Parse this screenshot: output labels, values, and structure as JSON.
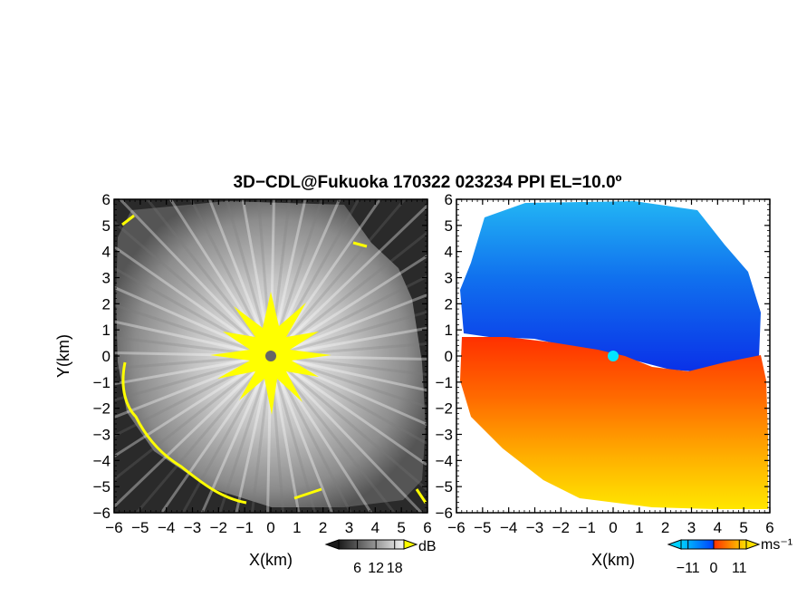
{
  "chart_data": [
    {
      "type": "heatmap",
      "title": "3D−CDL@Fukuoka 170322 023234 PPI EL=10.0º",
      "xlabel": "X(km)",
      "ylabel": "Y(km)",
      "xlim": [
        -6,
        6
      ],
      "ylim": [
        -6,
        6
      ],
      "x_ticks": [
        -6,
        -5,
        -4,
        -3,
        -2,
        -1,
        0,
        1,
        2,
        3,
        4,
        5,
        6
      ],
      "y_ticks": [
        -6,
        -5,
        -4,
        -3,
        -2,
        -1,
        0,
        1,
        2,
        3,
        4,
        5,
        6
      ],
      "x_tick_labels": [
        "−6",
        "−5",
        "−4",
        "−3",
        "−2",
        "−1",
        "0",
        "1",
        "2",
        "3",
        "4",
        "5",
        "6"
      ],
      "y_tick_labels": [
        "−6",
        "−5",
        "−4",
        "−3",
        "−2",
        "−1",
        "0",
        "1",
        "2",
        "3",
        "4",
        "5",
        "6"
      ],
      "quantity": "SNR",
      "colorbar": {
        "unit": "dB",
        "colormap": "grayscale",
        "colors": [
          "#1a1a1a",
          "#f5f5f5"
        ],
        "overflow_color": "#ffff00",
        "ticks": [
          6,
          12,
          18
        ],
        "tick_labels": [
          "6",
          "12",
          "18"
        ],
        "range": [
          0,
          21
        ]
      }
    },
    {
      "type": "heatmap",
      "xlabel": "X(km)",
      "xlim": [
        -6,
        6
      ],
      "ylim": [
        -6,
        6
      ],
      "x_ticks": [
        -6,
        -5,
        -4,
        -3,
        -2,
        -1,
        0,
        1,
        2,
        3,
        4,
        5,
        6
      ],
      "y_ticks": [
        -6,
        -5,
        -4,
        -3,
        -2,
        -1,
        0,
        1,
        2,
        3,
        4,
        5,
        6
      ],
      "x_tick_labels": [
        "−6",
        "−5",
        "−4",
        "−3",
        "−2",
        "−1",
        "0",
        "1",
        "2",
        "3",
        "4",
        "5",
        "6"
      ],
      "y_tick_labels": [
        "−6",
        "−5",
        "−4",
        "−3",
        "−2",
        "−1",
        "0",
        "1",
        "2",
        "3",
        "4",
        "5",
        "6"
      ],
      "quantity": "radial velocity",
      "colorbar": {
        "unit": "ms⁻¹",
        "colormap": "diverging",
        "colors": [
          "#00d0ff",
          "#0040ff",
          "#ff3000",
          "#ffe000"
        ],
        "ticks": [
          -11,
          0,
          11
        ],
        "tick_labels": [
          "−11",
          "0",
          "11"
        ],
        "range": [
          -14,
          14
        ]
      }
    }
  ]
}
